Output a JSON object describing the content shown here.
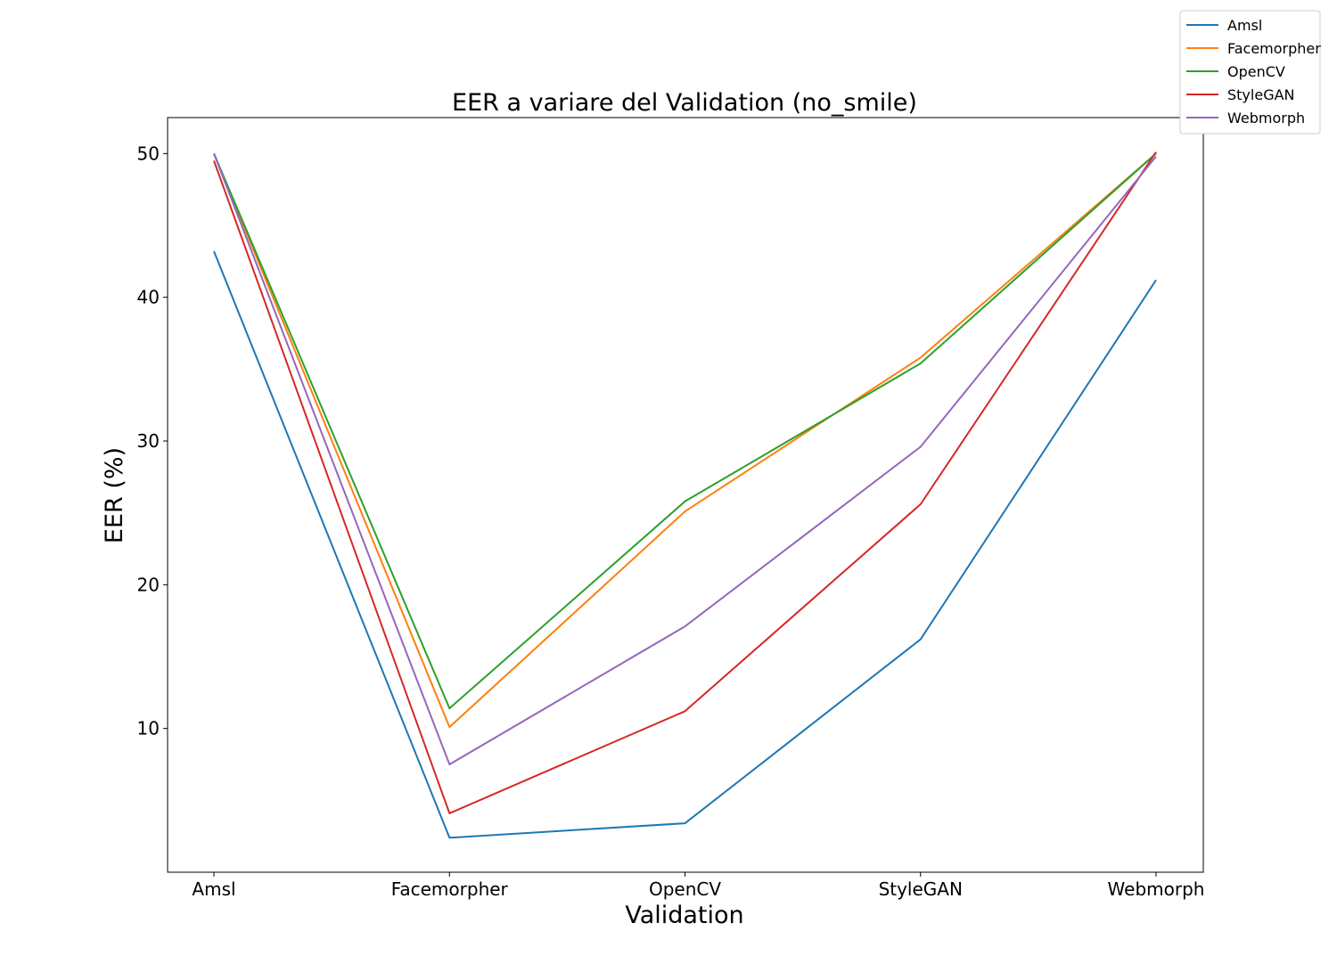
{
  "chart_data": {
    "type": "line",
    "title": "EER a variare del Validation (no_smile)",
    "xlabel": "Validation",
    "ylabel": "EER (%)",
    "categories": [
      "Amsl",
      "Facemorpher",
      "OpenCV",
      "StyleGAN",
      "Webmorph"
    ],
    "ylim": [
      0,
      52.5
    ],
    "yticks": [
      10,
      20,
      30,
      40,
      50
    ],
    "grid": false,
    "legend_position": "top-right",
    "series": [
      {
        "name": "Amsl",
        "color": "#1f77b4",
        "values": [
          43.2,
          2.4,
          3.4,
          16.2,
          41.2
        ]
      },
      {
        "name": "Facemorpher",
        "color": "#ff7f0e",
        "values": [
          50.0,
          10.1,
          25.1,
          35.8,
          50.0
        ]
      },
      {
        "name": "OpenCV",
        "color": "#2ca02c",
        "values": [
          50.0,
          11.4,
          25.8,
          35.4,
          50.0
        ]
      },
      {
        "name": "StyleGAN",
        "color": "#d62728",
        "values": [
          49.5,
          4.1,
          11.2,
          25.6,
          50.1
        ]
      },
      {
        "name": "Webmorph",
        "color": "#9467bd",
        "values": [
          50.0,
          7.5,
          17.1,
          29.6,
          49.8
        ]
      }
    ]
  }
}
